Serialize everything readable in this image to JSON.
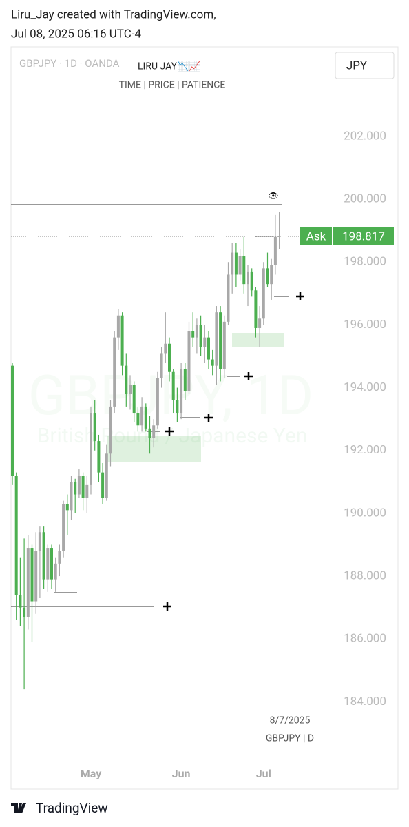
{
  "header": {
    "line1": "Liru_Jay created with TradingView.com,",
    "line2": "Jul 08, 2025 06:16 UTC-4"
  },
  "footer": {
    "brand": "TradingView"
  },
  "chart_data": {
    "type": "candlestick",
    "title": "GBPJPY · 1D · OANDA",
    "currency": "JPY",
    "annotations": [
      "LIRU JAY📉📈",
      "TIME | PRICE | PATIENCE",
      "8/7/2025",
      "GBPJPY | D"
    ],
    "watermark": [
      "GBPJPY, 1D",
      "British Pound / Japanese Yen"
    ],
    "up_color": "#a8a8a8",
    "down_color": "#4caf50",
    "last_price": {
      "label": "Ask",
      "value": 198.817,
      "color": "#4caf50"
    },
    "categories": [
      null,
      null,
      null,
      null,
      null,
      null,
      null,
      null,
      null,
      null,
      null,
      null,
      null,
      null,
      null,
      null,
      null,
      null,
      null,
      null,
      "May",
      null,
      null,
      null,
      null,
      null,
      null,
      null,
      null,
      null,
      null,
      null,
      null,
      null,
      null,
      null,
      null,
      null,
      null,
      null,
      null,
      null,
      null,
      "Jun",
      null,
      null,
      null,
      null,
      null,
      null,
      null,
      null,
      null,
      null,
      null,
      null,
      null,
      null,
      null,
      null,
      null,
      null,
      null,
      null,
      "Jul",
      null,
      null,
      null,
      null
    ],
    "open": [
      194.7,
      191.2,
      187.4,
      187.0,
      186.7,
      188.9,
      187.2,
      188.8,
      189.4,
      187.9,
      188.9,
      187.9,
      188.4,
      188.8,
      190.3,
      190.1,
      191.0,
      190.6,
      191.2,
      190.5,
      190.9,
      193.2,
      192.3,
      191.3,
      190.5,
      191.9,
      193.4,
      195.6,
      196.3,
      194.7,
      193.8,
      194.1,
      193.2,
      192.8,
      193.4,
      192.7,
      192.4,
      192.8,
      194.3,
      195.1,
      195.4,
      194.5,
      193.6,
      193.2,
      194.6,
      193.9,
      195.8,
      195.6,
      196.0,
      195.3,
      195.6,
      194.9,
      194.7,
      196.4,
      194.6,
      196.1,
      197.6,
      198.3,
      197.6,
      198.2,
      197.3,
      197.7,
      197.1,
      195.9,
      196.2,
      197.8,
      197.3,
      197.9,
      198.8
    ],
    "high": [
      194.8,
      191.3,
      188.6,
      189.2,
      189.3,
      189.0,
      189.4,
      189.6,
      189.6,
      189.0,
      189.0,
      188.6,
      189.0,
      190.4,
      190.6,
      191.2,
      191.1,
      191.4,
      191.3,
      191.2,
      193.4,
      193.6,
      192.5,
      191.6,
      192.2,
      193.6,
      195.8,
      196.5,
      196.4,
      195.1,
      194.4,
      194.2,
      193.4,
      193.7,
      193.5,
      193.1,
      193.0,
      194.5,
      195.3,
      196.4,
      195.6,
      194.6,
      194.0,
      194.8,
      194.8,
      196.1,
      196.4,
      196.2,
      196.3,
      196.0,
      195.8,
      195.2,
      196.6,
      196.6,
      196.3,
      198.0,
      198.6,
      198.6,
      198.4,
      198.8,
      197.9,
      197.8,
      197.2,
      196.6,
      198.0,
      198.3,
      198.1,
      199.5,
      199.6
    ],
    "low": [
      190.9,
      186.6,
      186.4,
      184.4,
      186.3,
      185.9,
      186.8,
      187.3,
      187.6,
      187.5,
      187.6,
      187.5,
      188.0,
      188.6,
      189.3,
      189.8,
      190.0,
      190.5,
      190.1,
      190.0,
      190.6,
      192.0,
      191.0,
      190.3,
      190.4,
      191.5,
      193.2,
      195.2,
      194.4,
      193.4,
      193.3,
      192.9,
      192.6,
      192.6,
      192.6,
      191.9,
      192.1,
      192.7,
      194.0,
      194.8,
      194.2,
      193.2,
      192.9,
      193.0,
      193.6,
      193.8,
      195.3,
      195.1,
      195.0,
      194.8,
      194.6,
      194.4,
      194.1,
      194.2,
      194.3,
      196.0,
      197.0,
      197.2,
      197.4,
      197.0,
      196.6,
      196.9,
      195.6,
      195.3,
      196.0,
      197.2,
      196.8,
      197.6,
      198.4
    ],
    "close": [
      191.2,
      187.4,
      187.0,
      186.7,
      188.9,
      187.2,
      188.8,
      189.4,
      187.9,
      188.9,
      187.9,
      188.4,
      188.8,
      190.3,
      190.1,
      191.0,
      190.6,
      191.2,
      190.5,
      190.9,
      193.2,
      192.3,
      191.3,
      190.5,
      191.9,
      193.4,
      195.6,
      196.3,
      194.7,
      193.8,
      194.1,
      193.2,
      192.8,
      193.4,
      192.7,
      192.4,
      192.8,
      194.3,
      195.1,
      195.4,
      194.5,
      193.6,
      193.2,
      194.6,
      193.9,
      195.8,
      195.6,
      196.0,
      195.3,
      195.6,
      194.9,
      194.7,
      196.4,
      194.6,
      196.1,
      197.6,
      198.3,
      197.6,
      198.2,
      197.3,
      197.7,
      197.1,
      195.9,
      196.2,
      197.8,
      197.3,
      197.9,
      198.8,
      198.817
    ],
    "ylim": [
      182.1,
      204.85
    ],
    "yticks": [
      {
        "value": 184,
        "label": "184.000"
      },
      {
        "value": 186,
        "label": "186.000"
      },
      {
        "value": 188,
        "label": "188.000"
      },
      {
        "value": 190,
        "label": "190.000"
      },
      {
        "value": 192,
        "label": "192.000"
      },
      {
        "value": 194,
        "label": "194.000"
      },
      {
        "value": 196,
        "label": "196.000"
      },
      {
        "value": 198,
        "label": "198.000"
      },
      {
        "value": 200,
        "label": "200.000"
      },
      {
        "value": 202,
        "label": "202.000"
      }
    ],
    "grid": false
  }
}
